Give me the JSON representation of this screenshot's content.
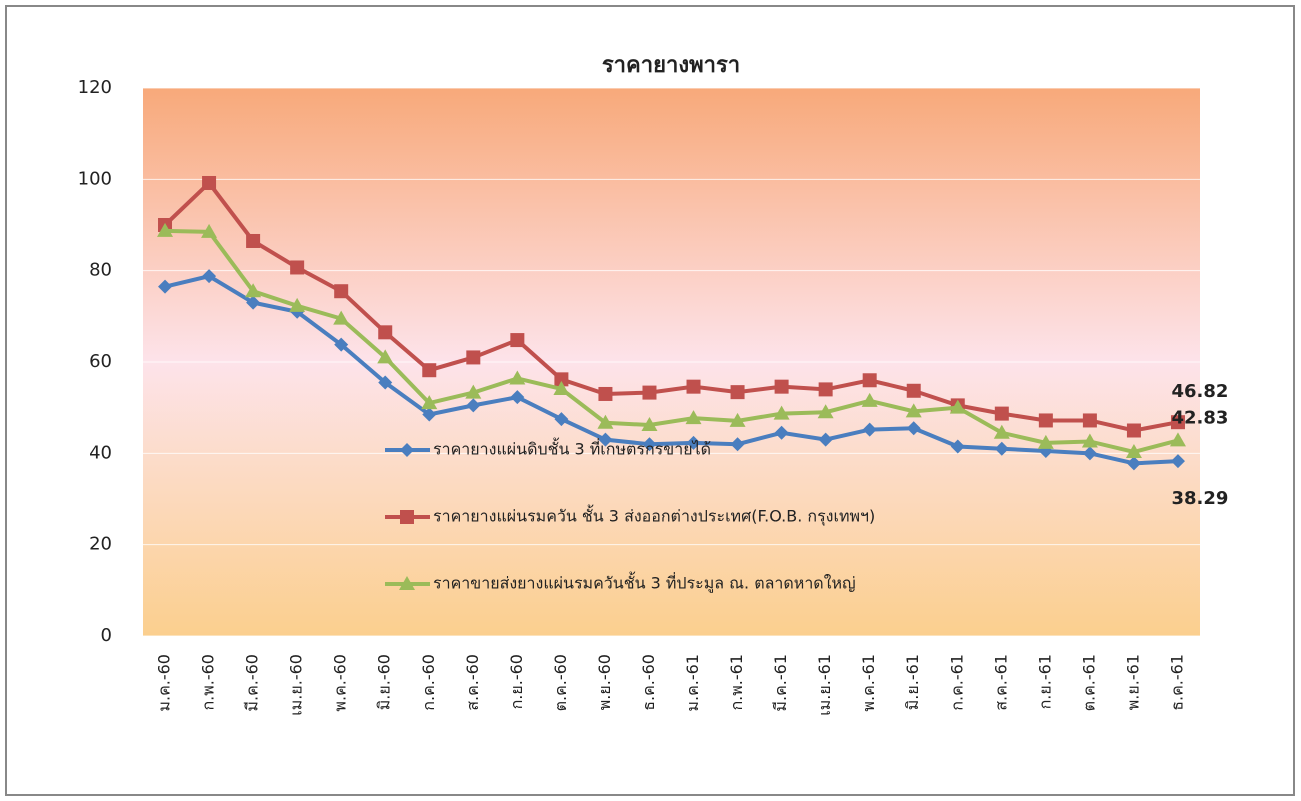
{
  "chart_data": {
    "type": "line",
    "title": "ราคายางพารา",
    "categories": [
      "ม.ค.-60",
      "ก.พ.-60",
      "มี.ค.-60",
      "เม.ย.-60",
      "พ.ค.-60",
      "มิ.ย.-60",
      "ก.ค.-60",
      "ส.ค.-60",
      "ก.ย.-60",
      "ต.ค.-60",
      "พ.ย.-60",
      "ธ.ค.-60",
      "ม.ค.-61",
      "ก.พ.-61",
      "มี.ค.-61",
      "เม.ย.-61",
      "พ.ค.-61",
      "มิ.ย.-61",
      "ก.ค.-61",
      "ส.ค.-61",
      "ก.ย.-61",
      "ต.ค.-61",
      "พ.ย.-61",
      "ธ.ค.-61"
    ],
    "series": [
      {
        "name": "ราคายางแผ่นดิบชั้น 3 ที่เกษตรกรขายได้",
        "color": "#4a7ebf",
        "marker": "diamond",
        "values": [
          76.5,
          78.8,
          73,
          71,
          63.8,
          55.5,
          48.5,
          50.5,
          52.3,
          47.5,
          43,
          42,
          42.3,
          42,
          44.5,
          43,
          45.2,
          45.5,
          41.5,
          41,
          40.5,
          40,
          37.8,
          38.29
        ]
      },
      {
        "name": "ราคายางแผ่นรมควัน ชั้น 3 ส่งออกต่างประเทศ(F.O.B. กรุงเทพฯ)",
        "color": "#c0504d",
        "marker": "square",
        "values": [
          90,
          99.2,
          86.5,
          80.7,
          75.5,
          66.5,
          58.2,
          61,
          64.8,
          56.2,
          53,
          53.3,
          54.6,
          53.4,
          54.6,
          54,
          56,
          53.7,
          50.5,
          48.7,
          47.2,
          47.2,
          45,
          46.82
        ]
      },
      {
        "name": "ราคาขายส่งยางแผ่นรมควันชั้น 3 ที่ประมูล ณ. ตลาดหาดใหญ่",
        "color": "#9bbb59",
        "marker": "triangle",
        "values": [
          88.7,
          88.5,
          75.5,
          72.3,
          69.5,
          61,
          51,
          53.3,
          56.4,
          54.1,
          46.7,
          46.2,
          47.7,
          47.1,
          48.7,
          49,
          51.5,
          49.2,
          50,
          44.5,
          42.3,
          42.6,
          40.3,
          42.83
        ]
      }
    ],
    "ylim": [
      0,
      120
    ],
    "yticks": [
      0,
      20,
      40,
      60,
      80,
      100,
      120
    ],
    "grid": true
  }
}
